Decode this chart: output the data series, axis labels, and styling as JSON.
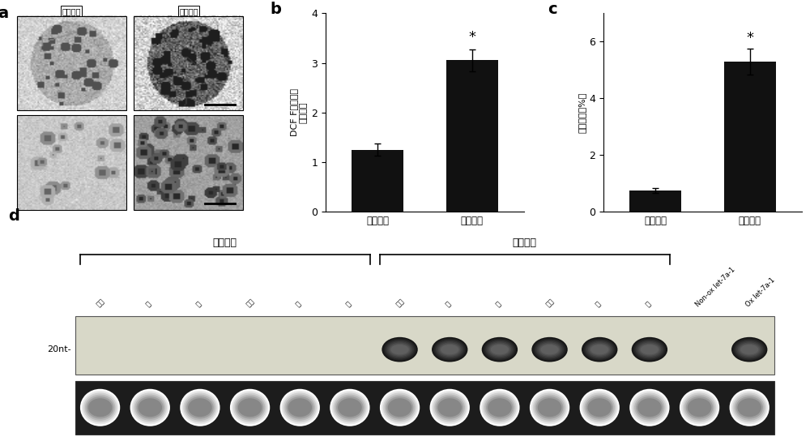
{
  "panel_b": {
    "categories": [
      "安慰剂组",
      "鐵超载组"
    ],
    "values": [
      1.25,
      3.05
    ],
    "errors": [
      0.12,
      0.22
    ],
    "ylabel_line1": "DCF F荧光强度",
    "ylabel_line2": "（倍数）",
    "ylim": [
      0,
      4
    ],
    "yticks": [
      0,
      1,
      2,
      3,
      4
    ],
    "bar_color": "#111111",
    "star_label": "*"
  },
  "panel_c": {
    "categories": [
      "安慰剂组",
      "鐵超载组"
    ],
    "values": [
      0.75,
      5.3
    ],
    "errors": [
      0.08,
      0.45
    ],
    "ylabel": "凋亡细胞（%）",
    "ylim": [
      0,
      7
    ],
    "yticks": [
      0,
      2,
      4,
      6
    ],
    "bar_color": "#111111",
    "star_label": "*"
  },
  "panel_d": {
    "group1_label": "安慰剂组",
    "group2_label": "鐵超载组",
    "lane_labels_g1": [
      "心脏",
      "脉",
      "肋",
      "小鼠",
      "肝",
      "肾"
    ],
    "lane_labels_g2": [
      "心脏",
      "脉",
      "肋",
      "小鼠",
      "肝",
      "肾"
    ],
    "lane_labels_extra": [
      "Non-ox let-7a-1",
      "Ox let-7a-1"
    ],
    "n_lanes": 14,
    "row1_label": "20nt-",
    "upper_gel_bg": "#ddddd0",
    "lower_gel_bg": "#1a1a1a",
    "dark_band_lanes_row1": [
      6,
      7,
      8,
      9,
      10,
      11,
      13
    ],
    "n_total_lanes": 14
  },
  "background_color": "#ffffff"
}
